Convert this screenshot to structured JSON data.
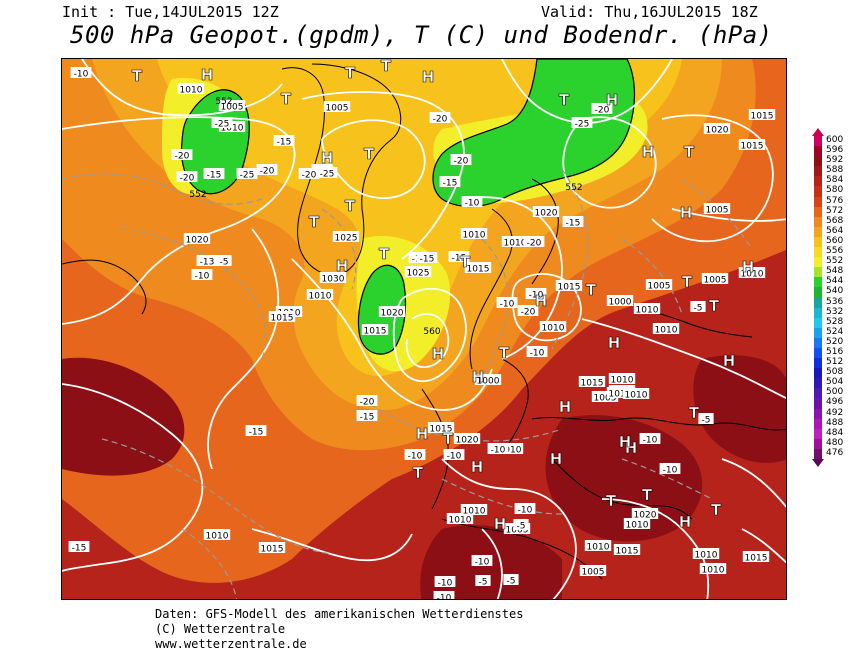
{
  "header": {
    "init": "Init : Tue,14JUL2015 12Z",
    "valid": "Valid: Thu,16JUL2015 18Z",
    "title": "500 hPa Geopot.(gpdm), T (C) und Bodendr. (hPa)"
  },
  "footer": {
    "line1": "Daten: GFS-Modell des amerikanischen Wetterdienstes",
    "line2": "(C) Wetterzentrale",
    "line3": "www.wetterzentrale.de"
  },
  "colors": {
    "deep_red": "#8b0f14",
    "red": "#b5231a",
    "red_orange": "#cf3d18",
    "orange": "#e5661c",
    "light_orange": "#f0951f",
    "yellow_orange": "#f6c21b",
    "yellow": "#f3ee2a",
    "green": "#2bd12c",
    "isobar": "#ffffff",
    "isotherm": "#9a9a9a",
    "coast": "#000000"
  },
  "legend": [
    {
      "label": "600",
      "color": "#d00060"
    },
    {
      "label": "596",
      "color": "#a30026"
    },
    {
      "label": "592",
      "color": "#8b0f14"
    },
    {
      "label": "588",
      "color": "#a01818"
    },
    {
      "label": "584",
      "color": "#b5231a"
    },
    {
      "label": "580",
      "color": "#c83018"
    },
    {
      "label": "576",
      "color": "#d84218"
    },
    {
      "label": "572",
      "color": "#e5661c"
    },
    {
      "label": "568",
      "color": "#ee8a1e"
    },
    {
      "label": "564",
      "color": "#f3a51f"
    },
    {
      "label": "560",
      "color": "#f6c21b"
    },
    {
      "label": "556",
      "color": "#f5dc20"
    },
    {
      "label": "552",
      "color": "#f3ee2a"
    },
    {
      "label": "548",
      "color": "#a7e32a"
    },
    {
      "label": "544",
      "color": "#2bd12c"
    },
    {
      "label": "540",
      "color": "#20b52e"
    },
    {
      "label": "536",
      "color": "#16a7a0"
    },
    {
      "label": "532",
      "color": "#17b8d0"
    },
    {
      "label": "528",
      "color": "#20c8ee"
    },
    {
      "label": "524",
      "color": "#1ca0f0"
    },
    {
      "label": "520",
      "color": "#1878f0"
    },
    {
      "label": "516",
      "color": "#1450f0"
    },
    {
      "label": "512",
      "color": "#1030e0"
    },
    {
      "label": "508",
      "color": "#1818c0"
    },
    {
      "label": "504",
      "color": "#3018b8"
    },
    {
      "label": "500",
      "color": "#5018b0"
    },
    {
      "label": "496",
      "color": "#6a14a8"
    },
    {
      "label": "492",
      "color": "#8a14b0"
    },
    {
      "label": "488",
      "color": "#a818b8"
    },
    {
      "label": "484",
      "color": "#c020c0"
    },
    {
      "label": "480",
      "color": "#a0109a"
    },
    {
      "label": "476",
      "color": "#70106a"
    }
  ],
  "legend_top_arrow_color": "#d0004a",
  "legend_bottom_arrow_color": "#5a0a5a",
  "pressure_centers": [
    {
      "letter": "H",
      "kind": "high"
    },
    {
      "letter": "T",
      "kind": "low"
    },
    {
      "letter": "T",
      "kind": "low"
    },
    {
      "letter": "T",
      "kind": "low"
    },
    {
      "letter": "H",
      "kind": "high"
    },
    {
      "letter": "T",
      "kind": "low"
    },
    {
      "letter": "H",
      "kind": "high"
    },
    {
      "letter": "T",
      "kind": "low"
    },
    {
      "letter": "T",
      "kind": "low"
    },
    {
      "letter": "T",
      "kind": "low"
    },
    {
      "letter": "H",
      "kind": "high"
    },
    {
      "letter": "T",
      "kind": "low"
    },
    {
      "letter": "H",
      "kind": "high"
    },
    {
      "letter": "H",
      "kind": "high"
    },
    {
      "letter": "T",
      "kind": "low"
    },
    {
      "letter": "T",
      "kind": "low"
    },
    {
      "letter": "H",
      "kind": "high"
    },
    {
      "letter": "H",
      "kind": "high"
    },
    {
      "letter": "T",
      "kind": "low"
    },
    {
      "letter": "H",
      "kind": "high"
    },
    {
      "letter": "T",
      "kind": "low"
    },
    {
      "letter": "H",
      "kind": "high"
    },
    {
      "letter": "T",
      "kind": "low"
    },
    {
      "letter": "H",
      "kind": "high"
    },
    {
      "letter": "H",
      "kind": "high"
    },
    {
      "letter": "T",
      "kind": "low"
    },
    {
      "letter": "T",
      "kind": "low"
    },
    {
      "letter": "H",
      "kind": "high"
    },
    {
      "letter": "H",
      "kind": "high"
    },
    {
      "letter": "T",
      "kind": "low"
    },
    {
      "letter": "T",
      "kind": "low"
    },
    {
      "letter": "H",
      "kind": "high"
    },
    {
      "letter": "H",
      "kind": "high"
    },
    {
      "letter": "T",
      "kind": "low"
    },
    {
      "letter": "T",
      "kind": "low"
    },
    {
      "letter": "H",
      "kind": "high"
    },
    {
      "letter": "H",
      "kind": "high"
    },
    {
      "letter": "H",
      "kind": "high"
    },
    {
      "letter": "T",
      "kind": "low"
    },
    {
      "letter": "T",
      "kind": "low"
    },
    {
      "letter": "H",
      "kind": "high"
    },
    {
      "letter": "H",
      "kind": "high"
    }
  ],
  "isobar_labels": [
    "1010",
    "1005",
    "1010",
    "1005",
    "1025",
    "1030",
    "1010",
    "1025",
    "1020",
    "1015",
    "1010",
    "1015",
    "1020",
    "1010",
    "1015",
    "1000",
    "1005",
    "1010",
    "1005",
    "1010",
    "1015",
    "1005",
    "1015",
    "1020",
    "1010",
    "1010",
    "1005",
    "1000",
    "1010",
    "1015",
    "1020",
    "1015",
    "1010",
    "1015",
    "1010",
    "1010",
    "1005",
    "1010",
    "1015",
    "1020",
    "1010",
    "1010",
    "1015",
    "1010",
    "1010",
    "1005",
    "1010",
    "1015",
    "1010",
    "1020",
    "1015",
    "1010"
  ],
  "isotherm_labels": [
    "-10",
    "-25",
    "-15",
    "-20",
    "-20",
    "-10",
    "-13",
    "-5",
    "-15",
    "-15",
    "-20",
    "-20",
    "-25",
    "-25",
    "-20",
    "-25",
    "-20",
    "-15",
    "-10",
    "-10",
    "-20",
    "-15",
    "-10",
    "-20",
    "-20",
    "-15",
    "-10",
    "-15",
    "-10",
    "-20",
    "-15",
    "-15",
    "-10",
    "-10",
    "-10",
    "-10",
    "-5",
    "-10",
    "-5",
    "-10",
    "-10",
    "-5",
    "-10",
    "-10",
    "-5",
    "-5",
    "-15"
  ],
  "contour_labels": [
    "552",
    "552",
    "552",
    "560"
  ]
}
